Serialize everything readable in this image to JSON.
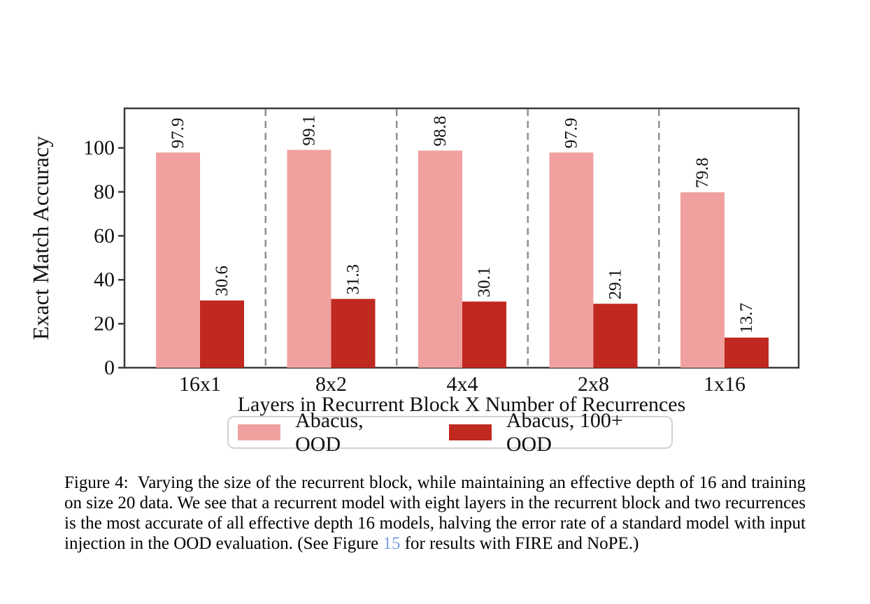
{
  "chart_data": {
    "type": "bar",
    "categories": [
      "16x1",
      "8x2",
      "4x4",
      "2x8",
      "1x16"
    ],
    "series": [
      {
        "name": "Abacus, OOD",
        "color": "#F0A19F",
        "values": [
          97.9,
          99.1,
          98.8,
          97.9,
          79.8
        ]
      },
      {
        "name": "Abacus, 100+ OOD",
        "color": "#C0291F",
        "values": [
          30.6,
          31.3,
          30.1,
          29.1,
          13.7
        ]
      }
    ],
    "title": "",
    "xlabel": "Layers in Recurrent Block X Number of Recurrences",
    "ylabel": "Exact Match Accuracy",
    "ylim": [
      0,
      118
    ],
    "yticks": [
      0,
      20,
      40,
      60,
      80,
      100
    ],
    "bar_value_labels": true,
    "value_decimals": 1,
    "group_separators": "dashed-vertical",
    "grid": false,
    "legend_position": "below-xlabel"
  },
  "caption": {
    "label": "Figure 4:",
    "before_link": "Varying the size of the recurrent block, while maintaining an effective depth of 16 and training on size 20 data. We see that a recurrent model with eight layers in the recurrent block and two recurrences is the most accurate of all effective depth 16 models, halving the error rate of a standard model with input injection in the OOD evaluation. (See Figure",
    "link": "15",
    "after_link": "for results with FIRE and NoPE.)"
  },
  "colors": {
    "background": "#ffffff",
    "axis": "#3a3a3a",
    "separator": "#8f8f8f",
    "legend_border": "#d2d2d2",
    "text": "#111111",
    "link": "#7D9FE4"
  }
}
